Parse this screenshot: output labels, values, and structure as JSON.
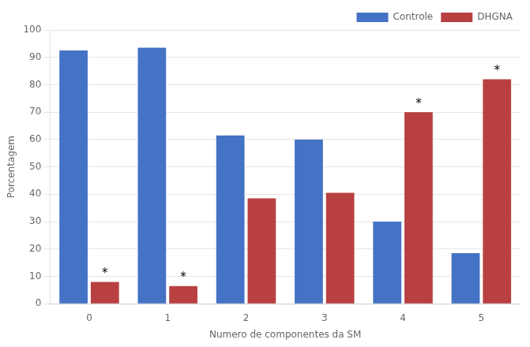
{
  "chart_data": {
    "type": "bar",
    "categories": [
      "0",
      "1",
      "2",
      "3",
      "4",
      "5"
    ],
    "series": [
      {
        "name": "Controle",
        "color": "#4472C4",
        "values": [
          92.5,
          93.5,
          61.5,
          60.0,
          30.0,
          18.5
        ]
      },
      {
        "name": "DHGNA",
        "color": "#B94040",
        "values": [
          8.0,
          6.5,
          38.5,
          40.5,
          70.0,
          82.0
        ]
      }
    ],
    "xlabel": "Numero de componentes da SM",
    "ylabel": "Porcentagem",
    "ylim": [
      0,
      100
    ],
    "yticks": [
      0,
      10,
      20,
      30,
      40,
      50,
      60,
      70,
      80,
      90,
      100
    ],
    "grid": true,
    "legend": "upper right",
    "annotations": [
      {
        "text": "*",
        "series": "DHGNA",
        "category": "0"
      },
      {
        "text": "*",
        "series": "DHGNA",
        "category": "1"
      },
      {
        "text": "*",
        "series": "DHGNA",
        "category": "4"
      },
      {
        "text": "*",
        "series": "DHGNA",
        "category": "5"
      }
    ]
  }
}
